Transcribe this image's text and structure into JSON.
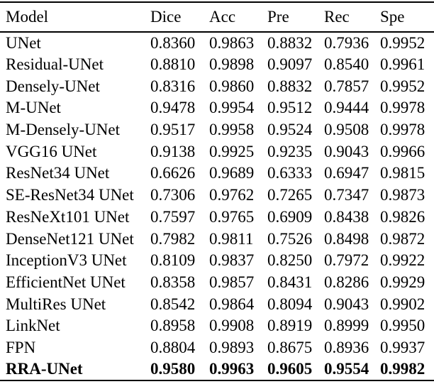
{
  "table": {
    "columns": [
      "Model",
      "Dice",
      "Acc",
      "Pre",
      "Rec",
      "Spe"
    ],
    "rows": [
      {
        "model": "UNet",
        "values": [
          "0.8360",
          "0.9863",
          "0.8832",
          "0.7936",
          "0.9952"
        ],
        "bold": false
      },
      {
        "model": "Residual-UNet",
        "values": [
          "0.8810",
          "0.9898",
          "0.9097",
          "0.8540",
          "0.9961"
        ],
        "bold": false
      },
      {
        "model": "Densely-UNet",
        "values": [
          "0.8316",
          "0.9860",
          "0.8832",
          "0.7857",
          "0.9952"
        ],
        "bold": false
      },
      {
        "model": "M-UNet",
        "values": [
          "0.9478",
          "0.9954",
          "0.9512",
          "0.9444",
          "0.9978"
        ],
        "bold": false
      },
      {
        "model": "M-Densely-UNet",
        "values": [
          "0.9517",
          "0.9958",
          "0.9524",
          "0.9508",
          "0.9978"
        ],
        "bold": false
      },
      {
        "model": "VGG16 UNet",
        "values": [
          "0.9138",
          "0.9925",
          "0.9235",
          "0.9043",
          "0.9966"
        ],
        "bold": false
      },
      {
        "model": "ResNet34 UNet",
        "values": [
          "0.6626",
          "0.9689",
          "0.6333",
          "0.6947",
          "0.9815"
        ],
        "bold": false
      },
      {
        "model": "SE-ResNet34 UNet",
        "values": [
          "0.7306",
          "0.9762",
          "0.7265",
          "0.7347",
          "0.9873"
        ],
        "bold": false
      },
      {
        "model": "ResNeXt101 UNet",
        "values": [
          "0.7597",
          "0.9765",
          "0.6909",
          "0.8438",
          "0.9826"
        ],
        "bold": false
      },
      {
        "model": "DenseNet121 UNet",
        "values": [
          "0.7982",
          "0.9811",
          "0.7526",
          "0.8498",
          "0.9872"
        ],
        "bold": false
      },
      {
        "model": "InceptionV3 UNet",
        "values": [
          "0.8109",
          "0.9837",
          "0.8250",
          "0.7972",
          "0.9922"
        ],
        "bold": false
      },
      {
        "model": "EfficientNet UNet",
        "values": [
          "0.8358",
          "0.9857",
          "0.8431",
          "0.8286",
          "0.9929"
        ],
        "bold": false
      },
      {
        "model": "MultiRes UNet",
        "values": [
          "0.8542",
          "0.9864",
          "0.8094",
          "0.9043",
          "0.9902"
        ],
        "bold": false
      },
      {
        "model": "LinkNet",
        "values": [
          "0.8958",
          "0.9908",
          "0.8919",
          "0.8999",
          "0.9950"
        ],
        "bold": false
      },
      {
        "model": "FPN",
        "values": [
          "0.8804",
          "0.9893",
          "0.8675",
          "0.8936",
          "0.9937"
        ],
        "bold": false
      },
      {
        "model": "RRA-UNet",
        "values": [
          "0.9580",
          "0.9963",
          "0.9605",
          "0.9554",
          "0.9982"
        ],
        "bold": true
      }
    ],
    "style": {
      "text_color": "#000000",
      "background": "#ffffff",
      "rule_color": "#000000"
    }
  }
}
